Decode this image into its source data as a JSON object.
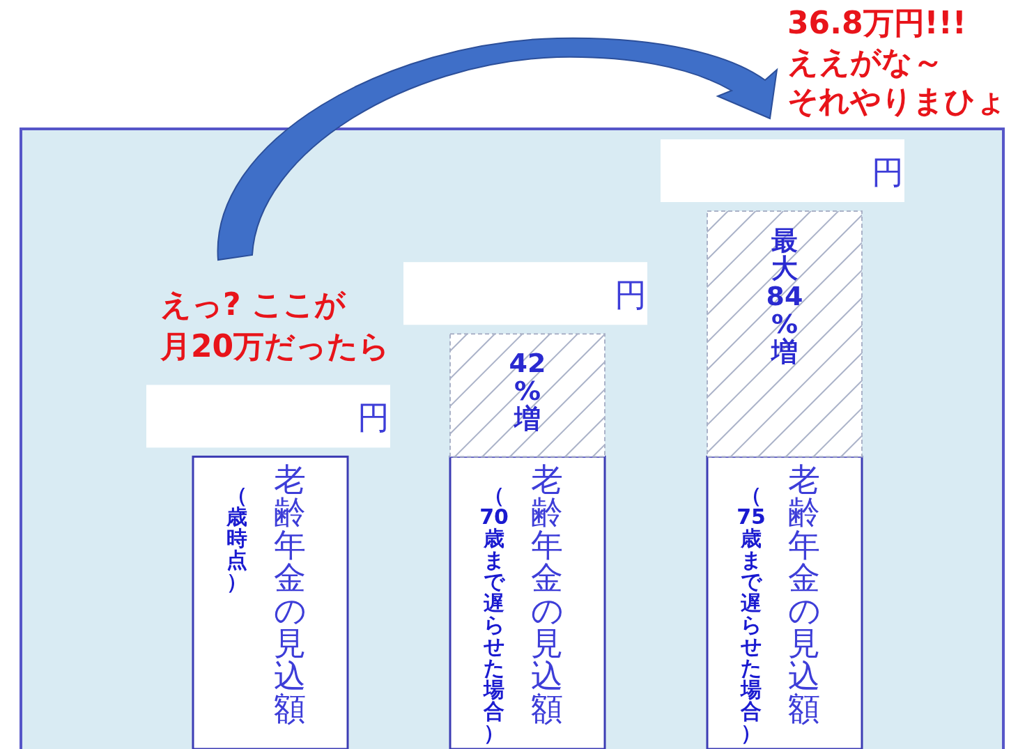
{
  "chart_data": {
    "type": "bar",
    "stacked": true,
    "categories": [
      "老齢年金の見込額",
      "老齢年金の見込額",
      "老齢年金の見込額"
    ],
    "series": [
      {
        "color": "#ffffff",
        "values": [
          100,
          100,
          100
        ]
      },
      {
        "color": "#aab2c8",
        "line_style": "dashed",
        "values": [
          null,
          42,
          84
        ],
        "value_labels": [
          null,
          "42%増",
          "最大84%増"
        ]
      }
    ],
    "annotations": [
      "円",
      "円",
      "円",
      "（歳時点）",
      "（70歳まで遅らせた場合）",
      "（75歳まで遅らせた場合）",
      "えっ? ここが",
      "月20万だったら",
      "36.8万円!!!",
      "ええがな～",
      "それやりまひょ"
    ]
  }
}
